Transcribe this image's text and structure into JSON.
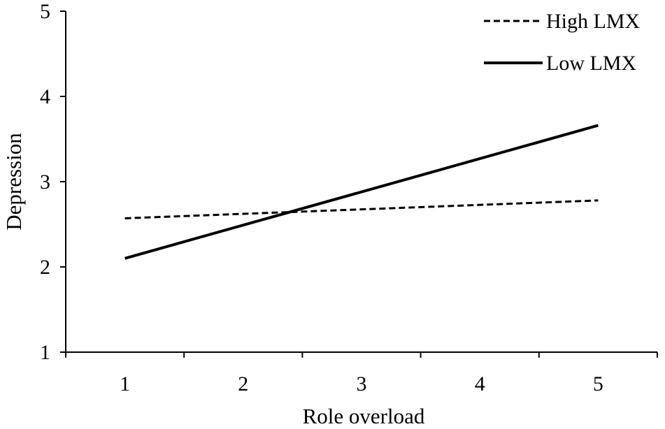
{
  "chart_data": {
    "type": "line",
    "title": "",
    "xlabel": "Role overload",
    "ylabel": "Depression",
    "xlim": [
      0.5,
      5.5
    ],
    "ylim": [
      1,
      5
    ],
    "xticks": [
      "1",
      "2",
      "3",
      "4",
      "5"
    ],
    "yticks": [
      "1",
      "2",
      "3",
      "4",
      "5"
    ],
    "grid": false,
    "legend_position": "top-right",
    "series": [
      {
        "name": "High LMX",
        "style": "dashed",
        "color": "#000000",
        "x": [
          1,
          5
        ],
        "y": [
          2.57,
          2.78
        ]
      },
      {
        "name": "Low LMX",
        "style": "solid",
        "color": "#000000",
        "x": [
          1,
          5
        ],
        "y": [
          2.1,
          3.66
        ]
      }
    ]
  }
}
